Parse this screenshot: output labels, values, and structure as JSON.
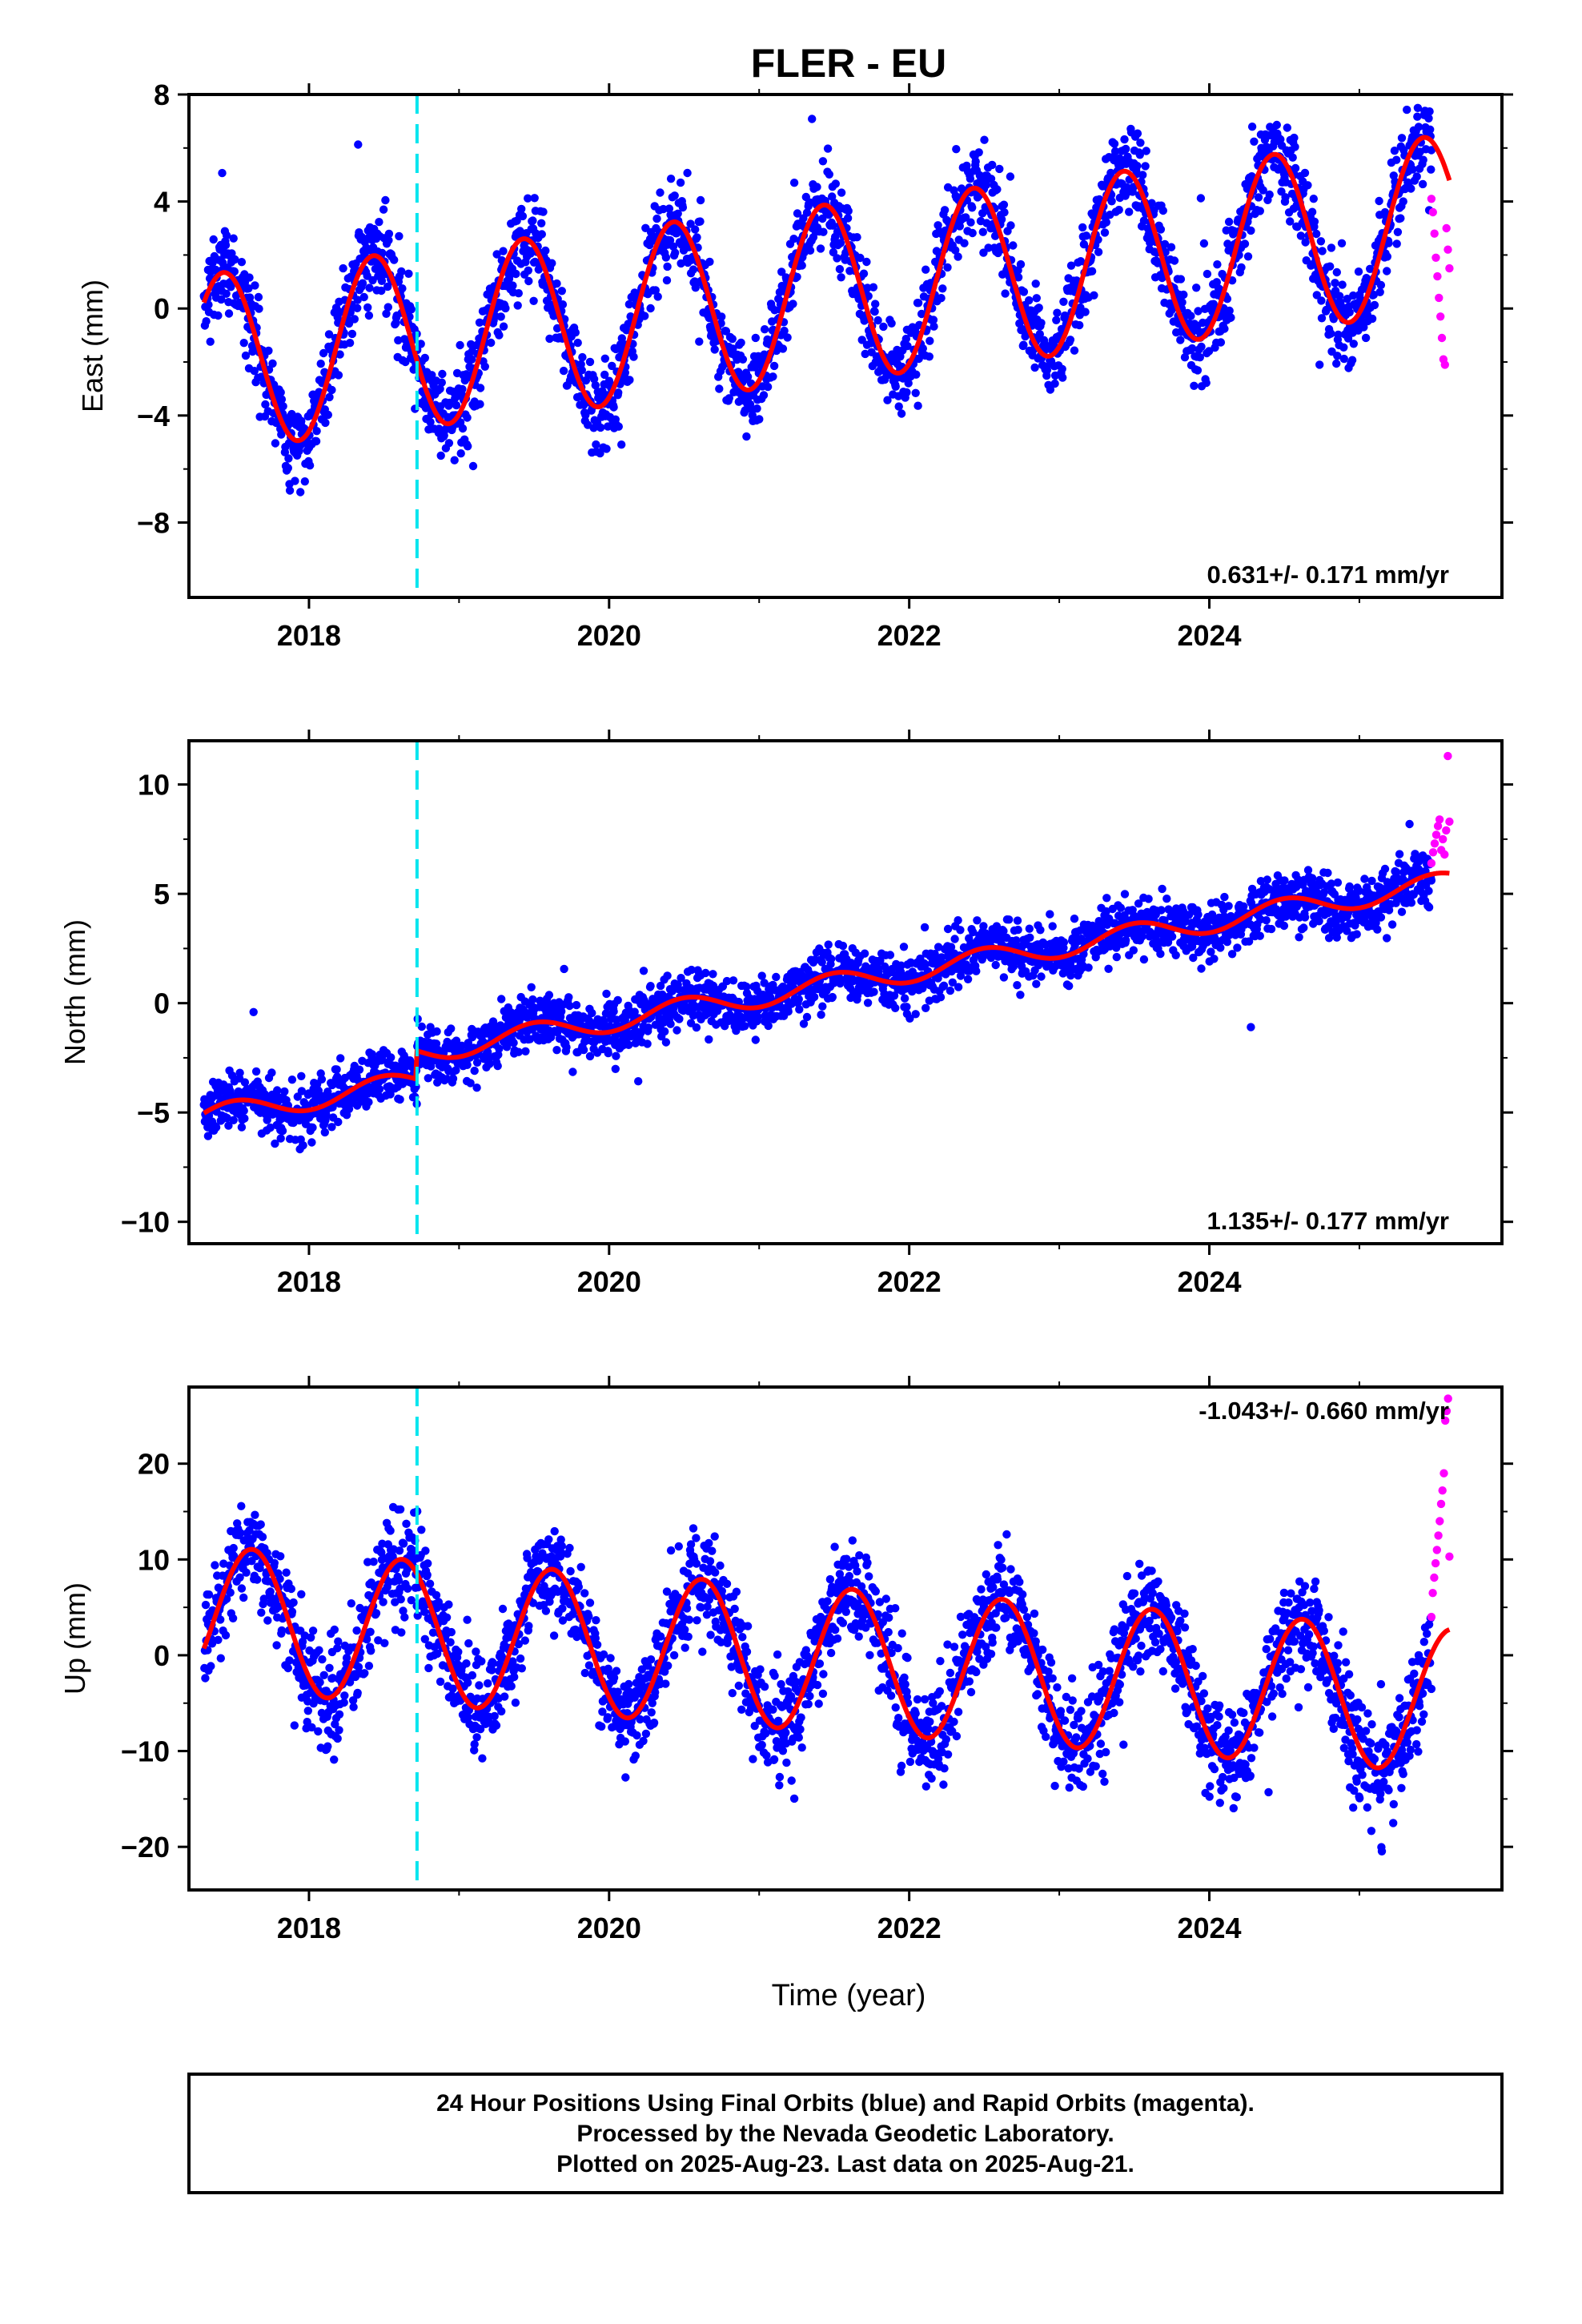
{
  "title": "FLER - EU",
  "xlabel": "Time (year)",
  "footer": {
    "line1": "24 Hour Positions Using Final Orbits (blue) and Rapid Orbits (magenta).",
    "line2": "Processed by the Nevada Geodetic Laboratory.",
    "line3": "Plotted on 2025-Aug-23. Last data on 2025-Aug-21."
  },
  "colors": {
    "final_orbits": "#0000ff",
    "rapid_orbits": "#ff00ff",
    "model_fit": "#ff0000",
    "equipment_change": "#00e5ee",
    "frame": "#000000"
  },
  "chart_data": [
    {
      "type": "scatter",
      "component": "East",
      "ylabel": "East (mm)",
      "xlim": [
        2017.2,
        2025.95
      ],
      "ylim": [
        -10.8,
        8
      ],
      "x_ticks": [
        2018,
        2020,
        2022,
        2024
      ],
      "y_ticks": [
        8,
        4,
        0,
        -4,
        -8
      ],
      "x_tick_labels": [
        "2018",
        "2020",
        "2022",
        "2024"
      ],
      "y_tick_labels": [
        "8",
        "4",
        "0",
        "−4",
        "−8"
      ],
      "rate_label": "0.631+/- 0.171 mm/yr",
      "rate_label_position": "bottom-right",
      "equipment_change_year": 2018.72,
      "model": {
        "offset": -2.1,
        "rate": 0.631,
        "annual_amplitude": 3.3,
        "annual_phase_year": 2017.43,
        "step_at_change": 0.0
      },
      "final_orbits_scatter_mm": 1.2,
      "final_orbits_range": [
        2017.3,
        2025.48
      ],
      "rapid_orbits_range": [
        2025.48,
        2025.6
      ],
      "rapid_orbits_values": [
        4.1,
        3.6,
        2.8,
        1.9,
        1.2,
        0.4,
        -0.3,
        -1.1,
        -1.9,
        -2.1,
        3.0,
        2.2,
        1.5
      ]
    },
    {
      "type": "scatter",
      "component": "North",
      "ylabel": "North (mm)",
      "xlim": [
        2017.2,
        2025.95
      ],
      "ylim": [
        -11,
        12
      ],
      "x_ticks": [
        2018,
        2020,
        2022,
        2024
      ],
      "y_ticks": [
        10,
        5,
        0,
        -5,
        -10
      ],
      "x_tick_labels": [
        "2018",
        "2020",
        "2022",
        "2024"
      ],
      "y_tick_labels": [
        "10",
        "5",
        "0",
        "−5",
        "−10"
      ],
      "rate_label": "1.135+/- 0.177 mm/yr",
      "rate_label_position": "bottom-right",
      "equipment_change_year": 2018.72,
      "model": {
        "offset": -5.3,
        "rate": 1.135,
        "annual_amplitude": 0.5,
        "annual_phase_year": 2017.5,
        "step_at_change": 1.3
      },
      "final_orbits_scatter_mm": 0.9,
      "final_orbits_range": [
        2017.3,
        2025.48
      ],
      "rapid_orbits_range": [
        2025.48,
        2025.6
      ],
      "rapid_orbits_values": [
        6.4,
        6.9,
        7.3,
        7.7,
        8.1,
        8.4,
        7.0,
        7.5,
        6.8,
        7.9,
        11.3,
        8.3
      ]
    },
    {
      "type": "scatter",
      "component": "Up",
      "ylabel": "Up (mm)",
      "xlim": [
        2017.2,
        2025.95
      ],
      "ylim": [
        -24.5,
        28
      ],
      "x_ticks": [
        2018,
        2020,
        2022,
        2024
      ],
      "y_ticks": [
        20,
        10,
        0,
        -10,
        -20
      ],
      "x_tick_labels": [
        "2018",
        "2020",
        "2022",
        "2024"
      ],
      "y_tick_labels": [
        "20",
        "10",
        "0",
        "−10",
        "−20"
      ],
      "rate_label": "-1.043+/- 0.660 mm/yr",
      "rate_label_position": "top-right",
      "equipment_change_year": 2018.72,
      "model": {
        "offset": 4.0,
        "rate": -1.043,
        "annual_amplitude": 7.5,
        "annual_phase_year": 2017.62,
        "step_at_change": 0.0
      },
      "final_orbits_scatter_mm": 3.6,
      "final_orbits_range": [
        2017.3,
        2025.48
      ],
      "rapid_orbits_range": [
        2025.48,
        2025.6
      ],
      "rapid_orbits_values": [
        4.0,
        6.5,
        8.1,
        9.6,
        11.0,
        12.5,
        14.0,
        15.8,
        17.2,
        19.0,
        24.5,
        25.5,
        26.8,
        10.3
      ]
    }
  ]
}
